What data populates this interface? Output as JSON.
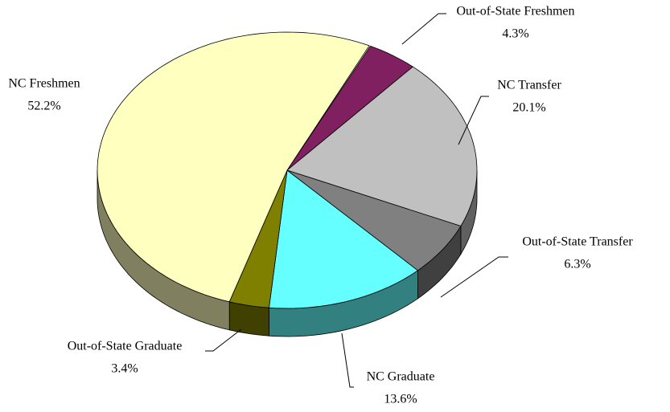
{
  "chart_data": {
    "type": "pie",
    "three_d": true,
    "categories": [
      "Out-of-State Freshmen",
      "NC Transfer",
      "Out-of-State Transfer",
      "NC Graduate",
      "Out-of-State Graduate",
      "NC Freshmen"
    ],
    "values": [
      4.3,
      20.1,
      6.3,
      13.6,
      3.4,
      52.2
    ],
    "value_labels": [
      "4.3%",
      "20.1%",
      "6.3%",
      "13.6%",
      "3.4%",
      "52.2%"
    ],
    "colors": [
      "#802060",
      "#c0c0c0",
      "#808080",
      "#66ffff",
      "#808000",
      "#ffffc0"
    ]
  }
}
